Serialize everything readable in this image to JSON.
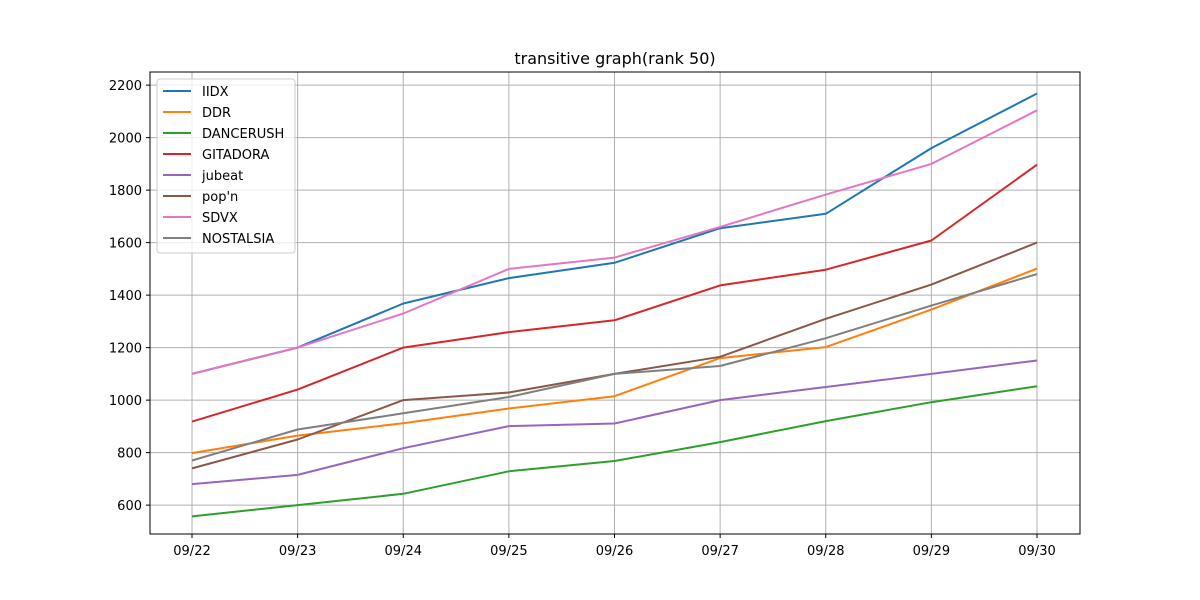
{
  "chart_data": {
    "type": "line",
    "title": "transitive graph(rank 50)",
    "xlabel": "",
    "ylabel": "",
    "categories": [
      "09/22",
      "09/23",
      "09/24",
      "09/25",
      "09/26",
      "09/27",
      "09/28",
      "09/29",
      "09/30"
    ],
    "ylim": [
      490,
      2250
    ],
    "yticks": [
      600,
      800,
      1000,
      1200,
      1400,
      1600,
      1800,
      2000,
      2200
    ],
    "grid": true,
    "legend_position": "top-left",
    "series": [
      {
        "name": "IIDX",
        "color": "#1f77b4",
        "values": [
          1100,
          1200,
          1368,
          1465,
          1523,
          1655,
          1710,
          1960,
          2168
        ]
      },
      {
        "name": "DDR",
        "color": "#ff7f0e",
        "values": [
          798,
          865,
          912,
          968,
          1015,
          1160,
          1202,
          1345,
          1501
        ]
      },
      {
        "name": "DANCERUSH",
        "color": "#2ca02c",
        "values": [
          557,
          600,
          643,
          729,
          768,
          840,
          920,
          992,
          1053
        ]
      },
      {
        "name": "GITADORA",
        "color": "#d62728",
        "values": [
          918,
          1040,
          1200,
          1259,
          1304,
          1437,
          1497,
          1608,
          1897
        ]
      },
      {
        "name": "jubeat",
        "color": "#9467bd",
        "values": [
          680,
          715,
          817,
          901,
          911,
          1000,
          1050,
          1100,
          1151
        ]
      },
      {
        "name": "pop'n",
        "color": "#8c564b",
        "values": [
          740,
          850,
          1000,
          1029,
          1100,
          1165,
          1310,
          1440,
          1600
        ]
      },
      {
        "name": "SDVX",
        "color": "#e377c2",
        "values": [
          1100,
          1200,
          1330,
          1500,
          1543,
          1660,
          1783,
          1900,
          2104
        ]
      },
      {
        "name": "NOSTALSIA",
        "color": "#7f7f7f",
        "values": [
          770,
          888,
          950,
          1012,
          1100,
          1130,
          1236,
          1360,
          1480
        ]
      }
    ]
  }
}
